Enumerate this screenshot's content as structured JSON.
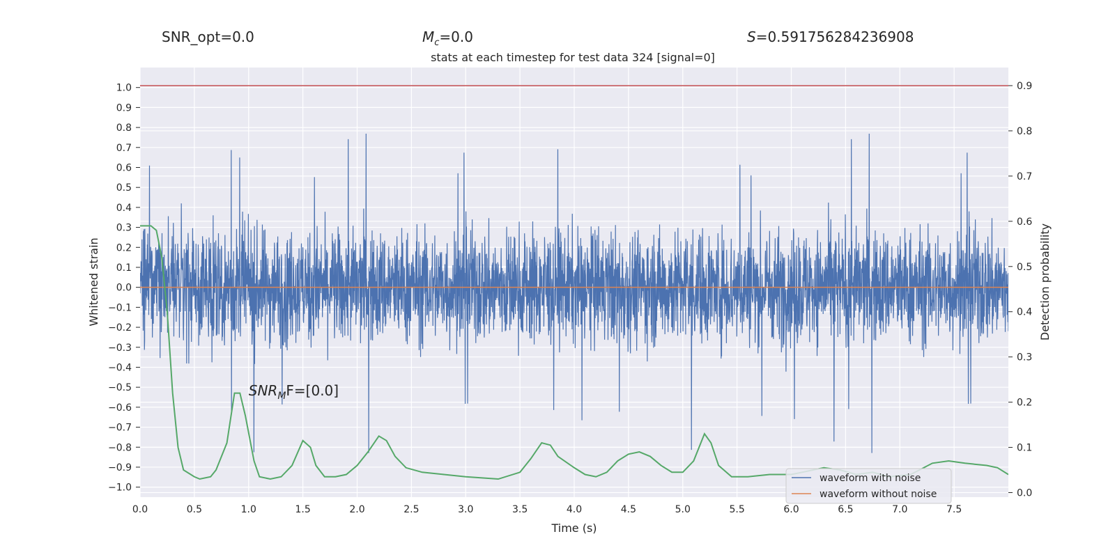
{
  "header": {
    "snr_opt": "SNR_opt=0.0",
    "mc_label": "M",
    "mc_sub": "c",
    "mc_value": "=0.0",
    "s_label": "S",
    "s_value": "=0.591756284236908"
  },
  "chart_data": {
    "type": "line",
    "title": "stats at each timestep for test data 324 [signal=0]",
    "xlabel": "Time (s)",
    "ylabel": "Whitened strain",
    "y2label": "Detection probability",
    "xlim": [
      0,
      8
    ],
    "ylim": [
      -1.05,
      1.1
    ],
    "y2lim": [
      -0.01,
      0.94
    ],
    "xticks": [
      "0.0",
      "0.5",
      "1.0",
      "1.5",
      "2.0",
      "2.5",
      "3.0",
      "3.5",
      "4.0",
      "4.5",
      "5.0",
      "5.5",
      "6.0",
      "6.5",
      "7.0",
      "7.5"
    ],
    "yticks": [
      "1.0",
      "0.9",
      "0.8",
      "0.7",
      "0.6",
      "0.5",
      "0.4",
      "0.3",
      "0.2",
      "0.1",
      "0.0",
      "−0.1",
      "−0.2",
      "−0.3",
      "−0.4",
      "−0.5",
      "−0.6",
      "−0.7",
      "−0.8",
      "−0.9",
      "−1.0"
    ],
    "y2ticks": [
      "0.9",
      "0.8",
      "0.7",
      "0.6",
      "0.5",
      "0.4",
      "0.3",
      "0.2",
      "0.1",
      "0.0"
    ],
    "grid": true,
    "legend_position": "lower-right",
    "annotation": {
      "label": "SNR",
      "sub": "M",
      "rest": "F=[0.0]",
      "x": 1.0,
      "y": -0.52
    },
    "threshold_line": {
      "y2": 0.9,
      "color": "#c44e52"
    },
    "series": [
      {
        "name": "waveform with noise",
        "color": "#4c72b0",
        "envelope": "noise"
      },
      {
        "name": "waveform without noise",
        "color": "#dd8452",
        "values": [
          [
            0,
            0
          ],
          [
            8,
            0
          ]
        ]
      },
      {
        "name": "",
        "color": "#55a868",
        "axis": "y2",
        "points": [
          [
            0,
            0.59
          ],
          [
            0.1,
            0.59
          ],
          [
            0.15,
            0.58
          ],
          [
            0.2,
            0.52
          ],
          [
            0.25,
            0.4
          ],
          [
            0.3,
            0.22
          ],
          [
            0.35,
            0.1
          ],
          [
            0.4,
            0.05
          ],
          [
            0.5,
            0.035
          ],
          [
            0.55,
            0.03
          ],
          [
            0.65,
            0.035
          ],
          [
            0.7,
            0.05
          ],
          [
            0.8,
            0.11
          ],
          [
            0.87,
            0.22
          ],
          [
            0.92,
            0.22
          ],
          [
            0.97,
            0.17
          ],
          [
            1.05,
            0.07
          ],
          [
            1.1,
            0.035
          ],
          [
            1.2,
            0.03
          ],
          [
            1.3,
            0.035
          ],
          [
            1.4,
            0.06
          ],
          [
            1.5,
            0.115
          ],
          [
            1.57,
            0.1
          ],
          [
            1.62,
            0.06
          ],
          [
            1.7,
            0.035
          ],
          [
            1.8,
            0.035
          ],
          [
            1.9,
            0.04
          ],
          [
            2.0,
            0.06
          ],
          [
            2.1,
            0.09
          ],
          [
            2.2,
            0.125
          ],
          [
            2.27,
            0.115
          ],
          [
            2.35,
            0.08
          ],
          [
            2.45,
            0.055
          ],
          [
            2.6,
            0.045
          ],
          [
            2.8,
            0.04
          ],
          [
            3.0,
            0.035
          ],
          [
            3.3,
            0.03
          ],
          [
            3.5,
            0.045
          ],
          [
            3.6,
            0.075
          ],
          [
            3.7,
            0.11
          ],
          [
            3.78,
            0.105
          ],
          [
            3.85,
            0.08
          ],
          [
            4.0,
            0.055
          ],
          [
            4.1,
            0.04
          ],
          [
            4.2,
            0.035
          ],
          [
            4.3,
            0.045
          ],
          [
            4.4,
            0.07
          ],
          [
            4.5,
            0.085
          ],
          [
            4.6,
            0.09
          ],
          [
            4.7,
            0.08
          ],
          [
            4.8,
            0.06
          ],
          [
            4.9,
            0.045
          ],
          [
            5.0,
            0.045
          ],
          [
            5.1,
            0.07
          ],
          [
            5.2,
            0.13
          ],
          [
            5.26,
            0.11
          ],
          [
            5.33,
            0.06
          ],
          [
            5.45,
            0.035
          ],
          [
            5.6,
            0.035
          ],
          [
            5.8,
            0.04
          ],
          [
            6.0,
            0.04
          ],
          [
            6.2,
            0.05
          ],
          [
            6.3,
            0.055
          ],
          [
            6.45,
            0.05
          ],
          [
            6.6,
            0.04
          ],
          [
            6.75,
            0.045
          ],
          [
            6.9,
            0.035
          ],
          [
            7.1,
            0.04
          ],
          [
            7.3,
            0.065
          ],
          [
            7.45,
            0.07
          ],
          [
            7.6,
            0.065
          ],
          [
            7.8,
            0.06
          ],
          [
            7.9,
            0.055
          ],
          [
            8.0,
            0.04
          ]
        ]
      }
    ]
  }
}
